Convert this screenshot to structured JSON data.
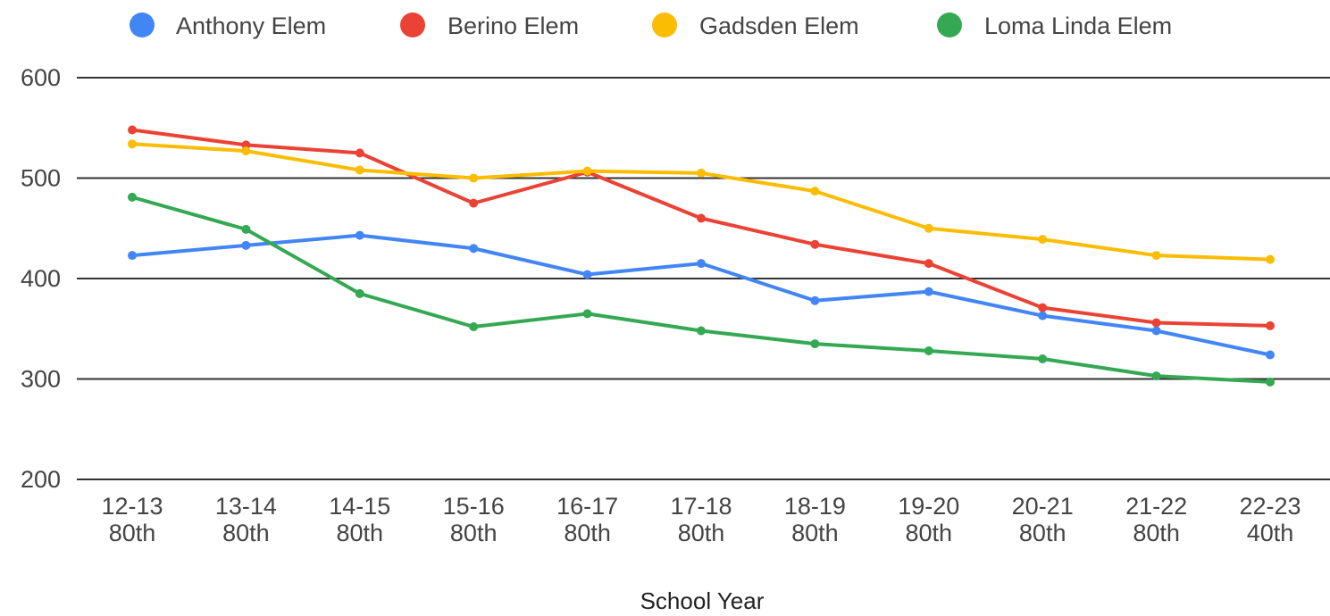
{
  "chart_data": {
    "type": "line",
    "xlabel": "School Year",
    "ylabel": "",
    "ylim": [
      200,
      600
    ],
    "yticks": [
      200,
      300,
      400,
      500,
      600
    ],
    "grid": true,
    "legend_position": "top",
    "categories": [
      [
        "12-13",
        "80th"
      ],
      [
        "13-14",
        "80th"
      ],
      [
        "14-15",
        "80th"
      ],
      [
        "15-16",
        "80th"
      ],
      [
        "16-17",
        "80th"
      ],
      [
        "17-18",
        "80th"
      ],
      [
        "18-19",
        "80th"
      ],
      [
        "19-20",
        "80th"
      ],
      [
        "20-21",
        "80th"
      ],
      [
        "21-22",
        "80th"
      ],
      [
        "22-23",
        "40th"
      ]
    ],
    "series": [
      {
        "name": "Anthony Elem",
        "color": "#4285F4",
        "values": [
          423,
          433,
          443,
          430,
          404,
          415,
          378,
          387,
          363,
          348,
          324
        ]
      },
      {
        "name": "Berino Elem",
        "color": "#EA4335",
        "values": [
          548,
          533,
          525,
          475,
          506,
          460,
          434,
          415,
          371,
          356,
          353
        ]
      },
      {
        "name": "Gadsden Elem",
        "color": "#FBBC04",
        "values": [
          534,
          527,
          508,
          500,
          507,
          505,
          487,
          450,
          439,
          423,
          419
        ]
      },
      {
        "name": "Loma Linda Elem",
        "color": "#34A853",
        "values": [
          481,
          449,
          385,
          352,
          365,
          348,
          335,
          328,
          320,
          303,
          297
        ]
      }
    ]
  }
}
